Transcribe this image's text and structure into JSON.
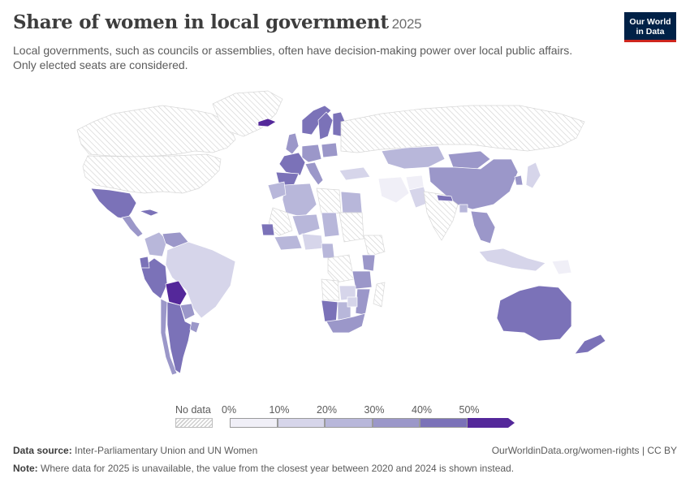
{
  "header": {
    "title": "Share of women in local government",
    "year": "2025",
    "subtitle_line1": "Local governments, such as councils or assemblies, often have decision-making power over local public affairs.",
    "subtitle_line2": "Only elected seats are considered."
  },
  "logo": {
    "line1": "Our World",
    "line2": "in Data",
    "bg_color": "#002147",
    "accent_color": "#ce261e"
  },
  "legend": {
    "no_data_label": "No data",
    "tick_labels": [
      "0%",
      "10%",
      "20%",
      "30%",
      "40%",
      "50%"
    ],
    "colors": [
      "#f0eff7",
      "#d6d5ea",
      "#b8b7da",
      "#9b97c9",
      "#7b72b8",
      "#54289a"
    ]
  },
  "chart_data": {
    "type": "choropleth",
    "unit": "%",
    "bins": [
      0,
      10,
      20,
      30,
      40,
      50
    ],
    "regions": [
      {
        "name": "Canada",
        "value": null
      },
      {
        "name": "United States",
        "value": null
      },
      {
        "name": "Greenland",
        "value": null
      },
      {
        "name": "Mexico",
        "value": 42
      },
      {
        "name": "Central America",
        "value": 35
      },
      {
        "name": "Cuba",
        "value": 40
      },
      {
        "name": "Colombia",
        "value": 20
      },
      {
        "name": "Venezuela",
        "value": 38
      },
      {
        "name": "Brazil",
        "value": 15
      },
      {
        "name": "Peru",
        "value": 40
      },
      {
        "name": "Ecuador",
        "value": 40
      },
      {
        "name": "Bolivia",
        "value": 50
      },
      {
        "name": "Paraguay",
        "value": 30
      },
      {
        "name": "Chile",
        "value": 35
      },
      {
        "name": "Argentina",
        "value": 42
      },
      {
        "name": "Uruguay",
        "value": 30
      },
      {
        "name": "Iceland",
        "value": 50
      },
      {
        "name": "Norway",
        "value": 42
      },
      {
        "name": "Sweden",
        "value": 44
      },
      {
        "name": "Finland",
        "value": 40
      },
      {
        "name": "United Kingdom",
        "value": 35
      },
      {
        "name": "France",
        "value": 42
      },
      {
        "name": "Spain",
        "value": 40
      },
      {
        "name": "Germany",
        "value": 30
      },
      {
        "name": "Italy",
        "value": 35
      },
      {
        "name": "Poland",
        "value": 30
      },
      {
        "name": "Russia",
        "value": null
      },
      {
        "name": "Kazakhstan",
        "value": 24
      },
      {
        "name": "Mongolia",
        "value": 30
      },
      {
        "name": "China",
        "value": 30
      },
      {
        "name": "Japan",
        "value": 16
      },
      {
        "name": "South Korea",
        "value": 30
      },
      {
        "name": "Turkey",
        "value": 10
      },
      {
        "name": "Iran",
        "value": 5
      },
      {
        "name": "Afghanistan",
        "value": 5
      },
      {
        "name": "Pakistan",
        "value": 15
      },
      {
        "name": "India",
        "value": null
      },
      {
        "name": "Nepal",
        "value": 41
      },
      {
        "name": "Bangladesh",
        "value": 25
      },
      {
        "name": "Southeast Asia",
        "value": 30
      },
      {
        "name": "Indonesia",
        "value": 15
      },
      {
        "name": "Papua New Guinea",
        "value": 5
      },
      {
        "name": "Algeria",
        "value": 20
      },
      {
        "name": "Libya",
        "value": null
      },
      {
        "name": "Egypt",
        "value": 20
      },
      {
        "name": "Morocco",
        "value": 27
      },
      {
        "name": "Mali",
        "value": null
      },
      {
        "name": "Niger",
        "value": 20
      },
      {
        "name": "Chad",
        "value": 25
      },
      {
        "name": "Sudan",
        "value": null
      },
      {
        "name": "Ethiopia",
        "value": null
      },
      {
        "name": "Senegal",
        "value": 45
      },
      {
        "name": "West Africa",
        "value": 20
      },
      {
        "name": "Nigeria",
        "value": 15
      },
      {
        "name": "Cameroon",
        "value": 25
      },
      {
        "name": "DR Congo",
        "value": null
      },
      {
        "name": "Kenya",
        "value": 30
      },
      {
        "name": "Tanzania",
        "value": 30
      },
      {
        "name": "Zambia",
        "value": 10
      },
      {
        "name": "Angola",
        "value": null
      },
      {
        "name": "Namibia",
        "value": 45
      },
      {
        "name": "Botswana",
        "value": 20
      },
      {
        "name": "Mozambique",
        "value": 30
      },
      {
        "name": "Zimbabwe",
        "value": 15
      },
      {
        "name": "South Africa",
        "value": 38
      },
      {
        "name": "Madagascar",
        "value": null
      },
      {
        "name": "Australia",
        "value": 42
      },
      {
        "name": "New Zealand",
        "value": 40
      }
    ]
  },
  "footer": {
    "source_label": "Data source:",
    "source_text": "Inter-Parliamentary Union and UN Women",
    "url_text": "OurWorldinData.org/women-rights | CC BY",
    "note_label": "Note:",
    "note_text": "Where data for 2025 is unavailable, the value from the closest year between 2020 and 2024 is shown instead."
  }
}
